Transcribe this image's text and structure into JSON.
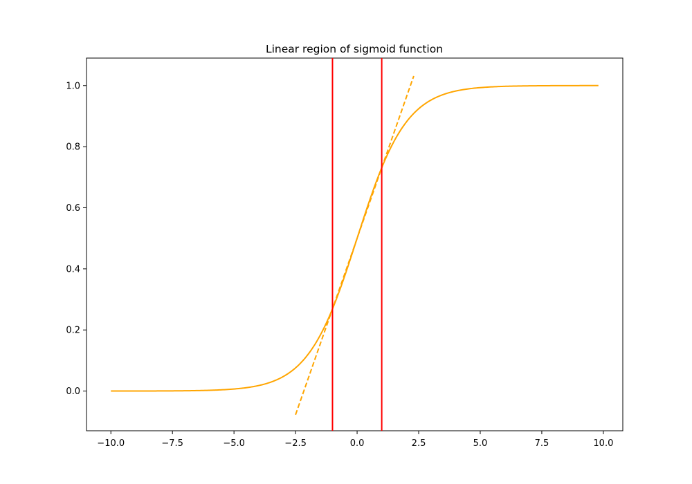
{
  "chart_data": {
    "type": "line",
    "title": "Linear region of sigmoid function",
    "xlabel": "",
    "ylabel": "",
    "xlim": [
      -10.99,
      10.79
    ],
    "ylim": [
      -0.13,
      1.09
    ],
    "x_ticks": [
      -10.0,
      -7.5,
      -5.0,
      -2.5,
      0.0,
      2.5,
      5.0,
      7.5,
      10.0
    ],
    "x_tick_labels": [
      "−10.0",
      "−7.5",
      "−5.0",
      "−2.5",
      "0.0",
      "2.5",
      "5.0",
      "7.5",
      "10.0"
    ],
    "y_ticks": [
      0.0,
      0.2,
      0.4,
      0.6,
      0.8,
      1.0
    ],
    "y_tick_labels": [
      "0.0",
      "0.2",
      "0.4",
      "0.6",
      "0.8",
      "1.0"
    ],
    "grid": false,
    "series": [
      {
        "style": "solid",
        "color": "#ffa500",
        "function": "sigmoid",
        "x_range": [
          -10.0,
          9.8
        ]
      },
      {
        "style": "dashed",
        "color": "#ffa500",
        "function": "tangent",
        "x_range": [
          -2.5,
          2.3
        ],
        "slope": 0.231,
        "intercept": 0.5
      }
    ],
    "vertical_lines": [
      {
        "x": -1.0,
        "color": "#ff0000"
      },
      {
        "x": 1.0,
        "color": "#ff0000"
      }
    ]
  }
}
